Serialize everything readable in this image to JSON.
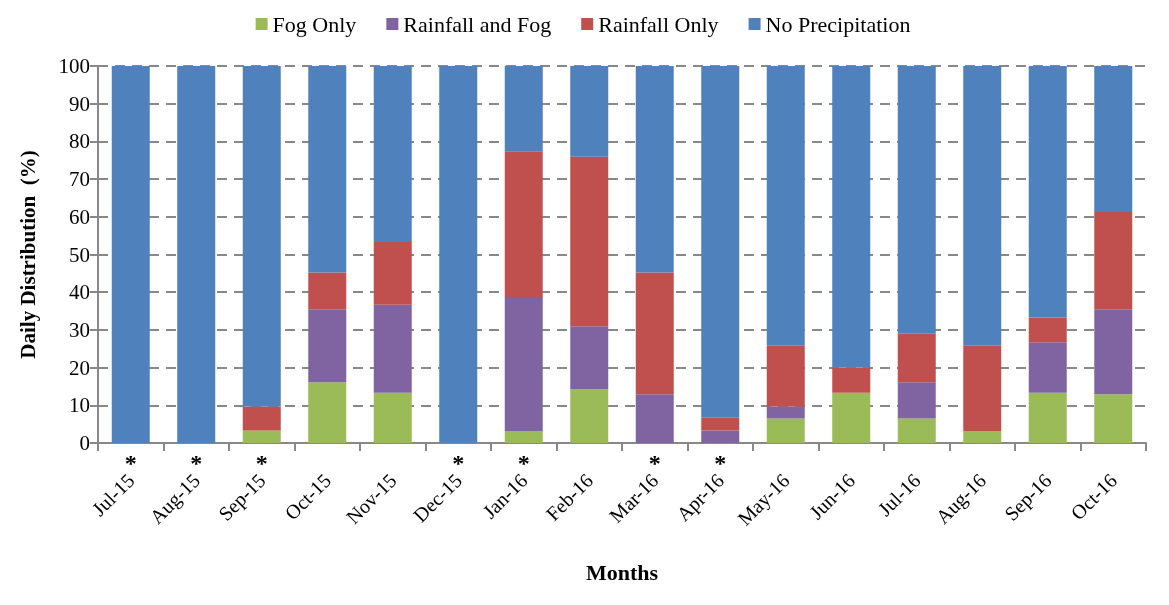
{
  "chart_data": {
    "type": "bar",
    "stacked": true,
    "xlabel": "Months",
    "ylabel": "Daily Distribution  (%)",
    "categories": [
      "Jul-15",
      "Aug-15",
      "Sep-15",
      "Oct-15",
      "Nov-15",
      "Dec-15",
      "Jan-16",
      "Feb-16",
      "Mar-16",
      "Apr-16",
      "May-16",
      "Jun-16",
      "Jul-16",
      "Aug-16",
      "Sep-16",
      "Oct-16"
    ],
    "series": [
      {
        "name": "Fog Only",
        "color": "#9bbb59",
        "values": [
          0,
          0,
          3.3,
          16.1,
          13.3,
          0,
          3.2,
          14.3,
          0,
          0,
          6.5,
          13.3,
          6.5,
          3.2,
          13.3,
          12.9
        ]
      },
      {
        "name": "Rainfall and Fog",
        "color": "#8064a2",
        "values": [
          0,
          0,
          0,
          19.4,
          23.4,
          0,
          35.5,
          16.7,
          12.9,
          3.3,
          3.2,
          0,
          9.6,
          0,
          13.4,
          22.6
        ]
      },
      {
        "name": "Rainfall Only",
        "color": "#c0504d",
        "values": [
          0,
          0,
          6.4,
          9.7,
          16.6,
          0,
          38.7,
          44.9,
          32.3,
          3.4,
          16.1,
          6.7,
          12.9,
          22.6,
          6.6,
          25.8
        ]
      },
      {
        "name": "No Precipitation",
        "color": "#4f81bd",
        "values": [
          100,
          100,
          90.3,
          54.8,
          46.7,
          100,
          22.6,
          24.1,
          54.8,
          93.3,
          74.2,
          80,
          71,
          74.2,
          66.7,
          38.7
        ]
      }
    ],
    "ylim": [
      0,
      100
    ],
    "yticks": [
      0,
      10,
      20,
      30,
      40,
      50,
      60,
      70,
      80,
      90,
      100
    ],
    "grid": "y",
    "legend": "top",
    "annotations": [
      {
        "text": "*",
        "x": "Jul-15",
        "y": 0
      },
      {
        "text": "*",
        "x": "Aug-15",
        "y": 0
      },
      {
        "text": "*",
        "x": "Sep-15",
        "y": 0
      },
      {
        "text": "*",
        "x": "Dec-15",
        "y": 0
      },
      {
        "text": "*",
        "x": "Jan-16",
        "y": 0
      },
      {
        "text": "*",
        "x": "Mar-16",
        "y": 0
      },
      {
        "text": "*",
        "x": "Apr-16",
        "y": 0
      }
    ]
  }
}
